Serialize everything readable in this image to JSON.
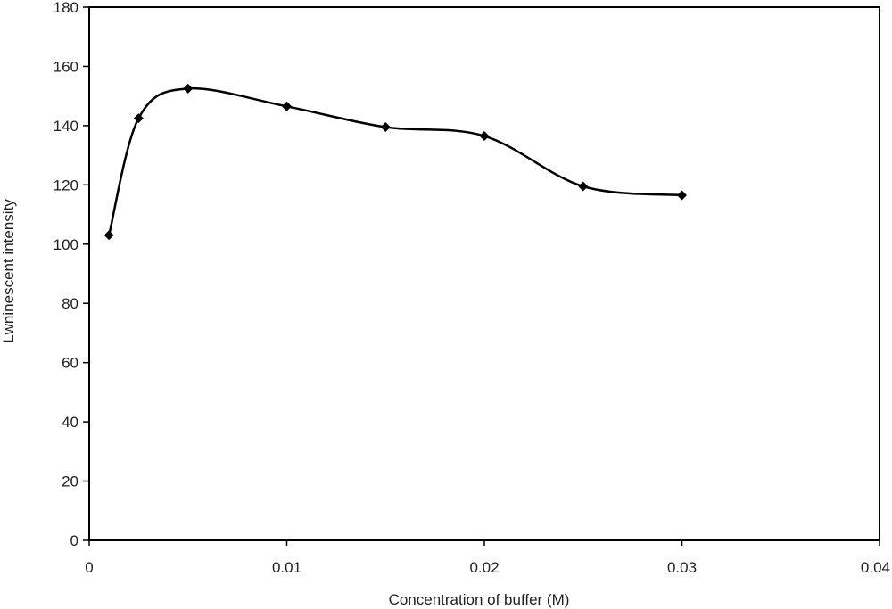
{
  "chart_data": {
    "type": "line",
    "title": "",
    "xlabel": "Concentration of buffer (M)",
    "ylabel": "Lwninescent intensity",
    "xlim": [
      0,
      0.04
    ],
    "ylim": [
      0,
      180
    ],
    "x_ticks": [
      "0",
      "0.01",
      "0.02",
      "0.03",
      "0.04"
    ],
    "y_ticks": [
      "0",
      "20",
      "40",
      "60",
      "80",
      "100",
      "120",
      "140",
      "160",
      "180"
    ],
    "grid": false,
    "legend": "none",
    "series": [
      {
        "x": [
          0.001,
          0.0025,
          0.005,
          0.01,
          0.015,
          0.02,
          0.025,
          0.03
        ],
        "y": [
          103,
          142.5,
          152.5,
          146.5,
          139.5,
          136.5,
          119.5,
          116.5
        ],
        "marker": "diamond",
        "smooth": true,
        "color": "#000000"
      }
    ]
  }
}
